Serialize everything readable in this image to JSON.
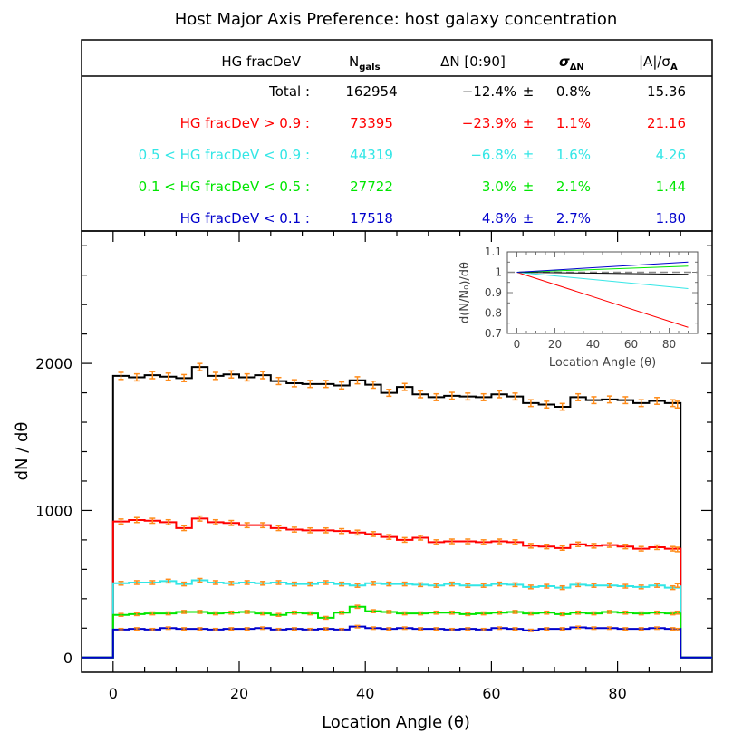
{
  "title": "Host Major Axis Preference: host galaxy concentration",
  "table": {
    "headers": {
      "label": "HG fracDeV",
      "ngals_main": "N",
      "ngals_sub": "gals",
      "dn": "ΔN [0:90]",
      "sigma_main": "σ",
      "sigma_sub": "ΔN",
      "ratio_main": "|A|/σ",
      "ratio_sub": "A"
    },
    "rows": [
      {
        "label": "Total :",
        "ngals": "162954",
        "dn": "−12.4%",
        "pm": "±",
        "sigma": "0.8%",
        "ratio": "15.36",
        "color": "#000000"
      },
      {
        "label": "HG fracDeV > 0.9 :",
        "ngals": "73395",
        "dn": "−23.9%",
        "pm": "±",
        "sigma": "1.1%",
        "ratio": "21.16",
        "color": "#ff0000"
      },
      {
        "label": "0.5 < HG fracDeV < 0.9 :",
        "ngals": "44319",
        "dn": "−6.8%",
        "pm": "±",
        "sigma": "1.6%",
        "ratio": "4.26",
        "color": "#33e6e6"
      },
      {
        "label": "0.1 < HG fracDeV < 0.5 :",
        "ngals": "27722",
        "dn": "3.0%",
        "pm": "±",
        "sigma": "2.1%",
        "ratio": "1.44",
        "color": "#00e600"
      },
      {
        "label": "HG fracDeV < 0.1 :",
        "ngals": "17518",
        "dn": "4.8%",
        "pm": "±",
        "sigma": "2.7%",
        "ratio": "1.80",
        "color": "#0000cc"
      }
    ]
  },
  "chart_data": [
    {
      "type": "line",
      "subtype": "histogram-step",
      "xlabel": "Location Angle (θ)",
      "ylabel": "dN / dθ",
      "xlim": [
        -5,
        95
      ],
      "ylim": [
        -100,
        2900
      ],
      "xticks": [
        0,
        20,
        40,
        60,
        80
      ],
      "yticks": [
        0,
        1000,
        2000
      ],
      "bin_width": 2.5,
      "error_bar_color": "#ff8c1a",
      "series": [
        {
          "key": "total",
          "color": "#000000",
          "values": [
            1915,
            1905,
            1920,
            1910,
            1900,
            1975,
            1915,
            1925,
            1905,
            1920,
            1880,
            1865,
            1860,
            1860,
            1850,
            1885,
            1855,
            1800,
            1840,
            1790,
            1770,
            1780,
            1775,
            1770,
            1790,
            1775,
            1730,
            1720,
            1705,
            1770,
            1750,
            1755,
            1750,
            1730,
            1745,
            1730,
            1720
          ]
        },
        {
          "key": "red",
          "color": "#ff0000",
          "values": [
            925,
            935,
            930,
            920,
            880,
            945,
            920,
            915,
            900,
            900,
            880,
            870,
            865,
            865,
            860,
            850,
            840,
            820,
            800,
            815,
            785,
            790,
            790,
            785,
            790,
            785,
            760,
            755,
            745,
            770,
            760,
            765,
            755,
            740,
            750,
            740,
            735
          ]
        },
        {
          "key": "cyan",
          "color": "#33e6e6",
          "values": [
            505,
            510,
            510,
            520,
            500,
            525,
            510,
            505,
            510,
            505,
            510,
            500,
            500,
            510,
            500,
            490,
            505,
            500,
            500,
            495,
            490,
            500,
            490,
            490,
            500,
            495,
            480,
            485,
            475,
            495,
            490,
            490,
            485,
            480,
            490,
            475,
            490
          ]
        },
        {
          "key": "green",
          "color": "#00e600",
          "values": [
            290,
            295,
            300,
            300,
            310,
            310,
            300,
            305,
            310,
            300,
            290,
            305,
            300,
            270,
            305,
            345,
            315,
            310,
            300,
            300,
            305,
            305,
            295,
            300,
            305,
            310,
            300,
            305,
            295,
            305,
            300,
            310,
            305,
            300,
            305,
            300,
            305
          ]
        },
        {
          "key": "blue",
          "color": "#0000cc",
          "values": [
            190,
            195,
            190,
            200,
            195,
            195,
            190,
            195,
            195,
            200,
            190,
            195,
            190,
            195,
            190,
            210,
            200,
            195,
            200,
            195,
            195,
            190,
            195,
            190,
            200,
            195,
            185,
            195,
            195,
            205,
            200,
            200,
            195,
            195,
            200,
            195,
            190
          ]
        }
      ]
    },
    {
      "type": "line",
      "subtype": "inset",
      "xlabel": "Location Angle (θ)",
      "ylabel": "d(N/N₀)/dθ",
      "xlim": [
        -5,
        95
      ],
      "ylim": [
        0.7,
        1.1
      ],
      "xticks": [
        0,
        20,
        40,
        60,
        80
      ],
      "yticks": [
        0.7,
        0.8,
        0.9,
        1,
        1.1
      ],
      "reference_line": 1.0,
      "series": [
        {
          "key": "red",
          "color": "#ff0000",
          "x": [
            0,
            90
          ],
          "y": [
            1.0,
            0.73
          ]
        },
        {
          "key": "cyan",
          "color": "#33e6e6",
          "x": [
            0,
            90
          ],
          "y": [
            1.0,
            0.92
          ]
        },
        {
          "key": "total",
          "color": "#000000",
          "x": [
            0,
            90
          ],
          "y": [
            1.0,
            0.99
          ]
        },
        {
          "key": "green",
          "color": "#00e600",
          "x": [
            0,
            90
          ],
          "y": [
            1.0,
            1.03
          ]
        },
        {
          "key": "blue",
          "color": "#0000cc",
          "x": [
            0,
            90
          ],
          "y": [
            1.0,
            1.05
          ]
        }
      ]
    }
  ]
}
